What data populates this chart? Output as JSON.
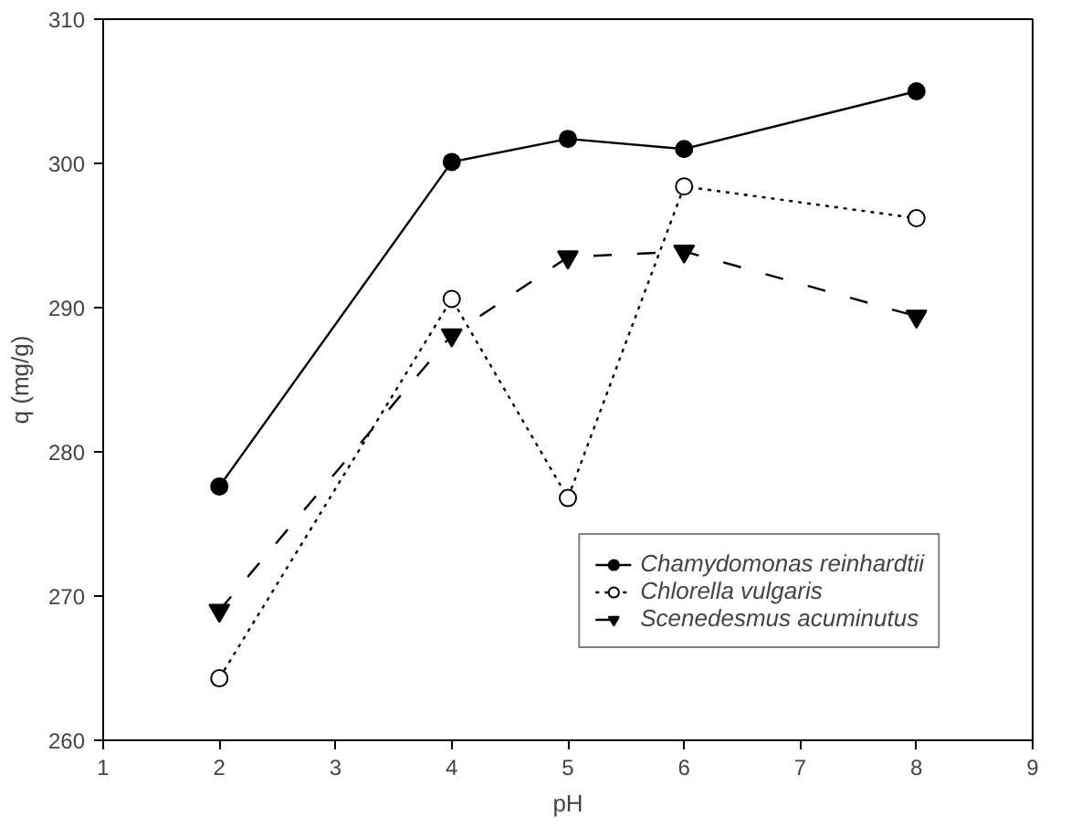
{
  "chart_data": {
    "type": "line",
    "xlabel": "pH",
    "ylabel": "q (mg/g)",
    "x": [
      2,
      4,
      5,
      6,
      8
    ],
    "xlim": [
      1,
      9
    ],
    "xticks": [
      1,
      2,
      3,
      4,
      5,
      6,
      7,
      8,
      9
    ],
    "ylim": [
      260,
      310
    ],
    "yticks": [
      260,
      270,
      280,
      290,
      300,
      310
    ],
    "grid": false,
    "legend": "bottom right",
    "series": [
      {
        "name": "Chamydomonas reinhardtii",
        "color": "#000000",
        "marker": "circle",
        "line_style": "solid",
        "values": [
          277.6,
          300.1,
          301.7,
          301.0,
          305.0
        ]
      },
      {
        "name": "Chlorella vulgaris",
        "color": "#000000",
        "marker": "circle",
        "line_style": "dotted",
        "values": [
          264.3,
          290.6,
          276.8,
          298.4,
          296.2
        ]
      },
      {
        "name": "Scenedesmus acuminutus",
        "color": "#000000",
        "marker": "triangle",
        "line_style": "dashed",
        "values": [
          269.0,
          288.1,
          293.5,
          293.9,
          289.4
        ]
      }
    ]
  }
}
